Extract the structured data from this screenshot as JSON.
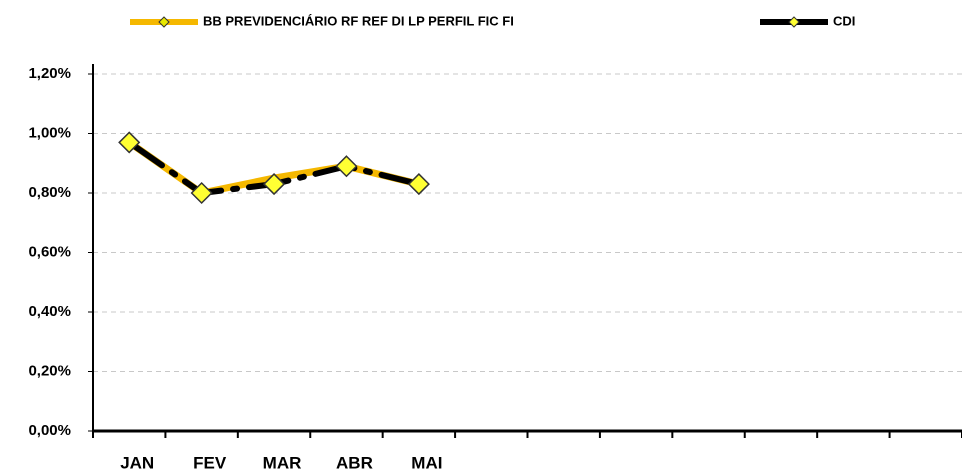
{
  "chart_data": {
    "type": "line",
    "categories": [
      "JAN",
      "FEV",
      "MAR",
      "ABR",
      "MAI",
      null,
      null,
      null,
      null,
      null,
      null,
      null
    ],
    "series": [
      {
        "name": "BB PREVIDENCIÁRIO RF REF DI LP PERFIL FIC FI",
        "color": "#f5b800",
        "marker_color": "#e8e800",
        "values": [
          0.97,
          0.8,
          0.85,
          0.89,
          0.83,
          null,
          null,
          null,
          null,
          null,
          null,
          null
        ]
      },
      {
        "name": "CDI",
        "color": "#000000",
        "marker_color": "#ffff33",
        "values": [
          0.97,
          0.8,
          0.83,
          0.89,
          0.83,
          null,
          null,
          null,
          null,
          null,
          null,
          null
        ]
      }
    ],
    "ylim": [
      0,
      1.2
    ],
    "yticks": [
      {
        "value": 0,
        "label": "0,00%"
      },
      {
        "value": 0.2,
        "label": "0,20%"
      },
      {
        "value": 0.4,
        "label": "0,40%"
      },
      {
        "value": 0.6,
        "label": "0,60%"
      },
      {
        "value": 0.8,
        "label": "0,80%"
      },
      {
        "value": 1.0,
        "label": "1,00%"
      },
      {
        "value": 1.2,
        "label": "1,20%"
      }
    ],
    "grid": true,
    "legend": "top"
  }
}
